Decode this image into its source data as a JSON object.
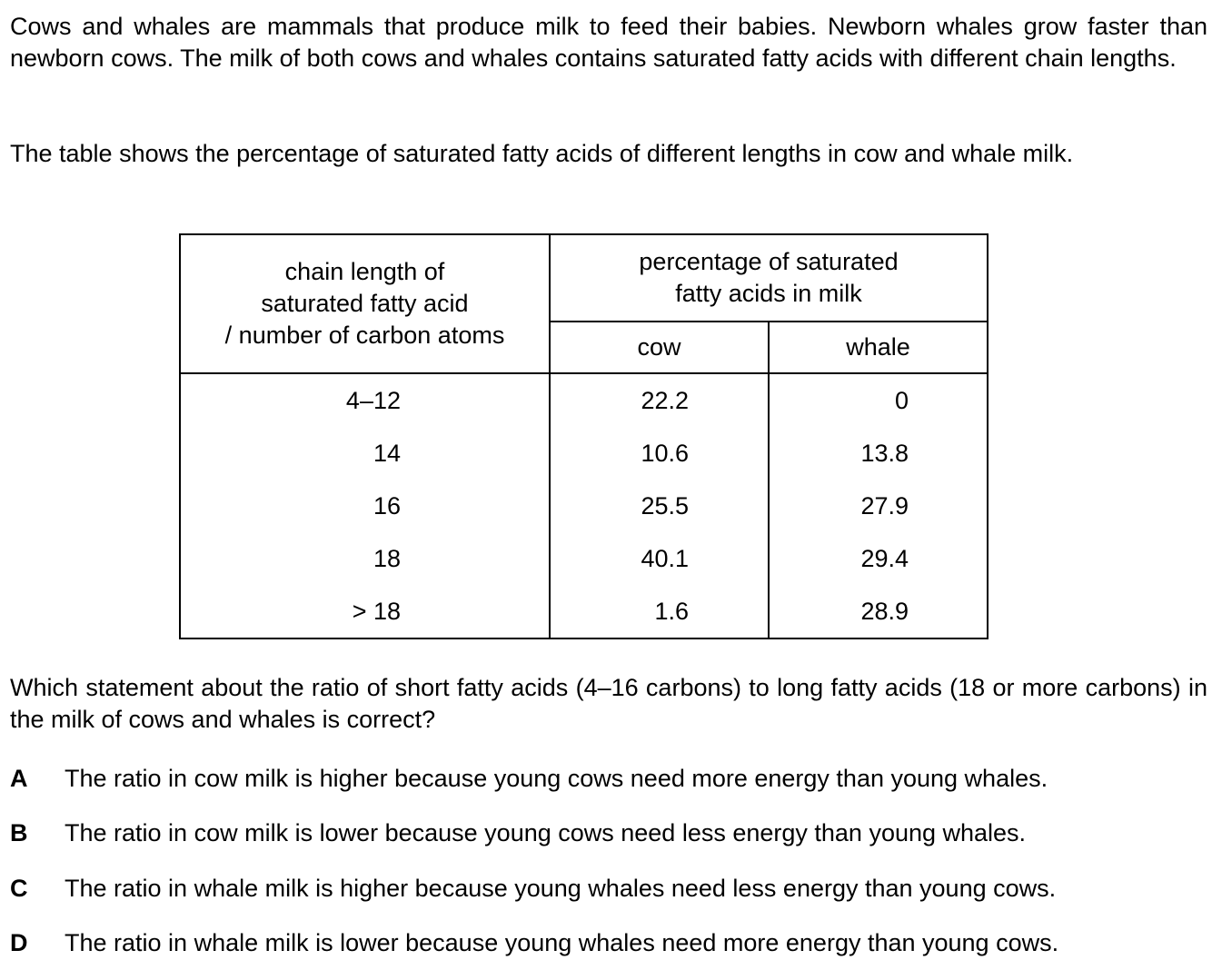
{
  "intro": "Cows and whales are mammals that produce milk to feed their babies. Newborn whales grow faster than newborn cows. The milk of both cows and whales contains saturated fatty acids with different chain lengths.",
  "table_intro": "The table shows the percentage of saturated fatty acids of different lengths in cow and whale milk.",
  "table": {
    "header_chain_line1": "chain length of",
    "header_chain_line2": "saturated fatty acid",
    "header_chain_line3": "/ number of carbon atoms",
    "header_pct_line1": "percentage of saturated",
    "header_pct_line2": "fatty acids in milk",
    "header_cow": "cow",
    "header_whale": "whale",
    "rows": [
      {
        "chain": "4–12",
        "cow": "22.2",
        "whale": "0"
      },
      {
        "chain": "14",
        "cow": "10.6",
        "whale": "13.8"
      },
      {
        "chain": "16",
        "cow": "25.5",
        "whale": "27.9"
      },
      {
        "chain": "18",
        "cow": "40.1",
        "whale": "29.4"
      },
      {
        "chain": "> 18",
        "cow": "1.6",
        "whale": "28.9"
      }
    ]
  },
  "question": "Which statement about the ratio of short fatty acids (4–16 carbons) to long fatty acids (18 or more carbons) in the milk of cows and whales is correct?",
  "options": [
    {
      "letter": "A",
      "text": "The ratio in cow milk is higher because young cows need more energy than young whales."
    },
    {
      "letter": "B",
      "text": "The ratio in cow milk is lower because young cows need less energy than young whales."
    },
    {
      "letter": "C",
      "text": "The ratio in whale milk is higher because young whales need less energy than young cows."
    },
    {
      "letter": "D",
      "text": "The ratio in whale milk is lower because young whales need more energy than young cows."
    }
  ]
}
